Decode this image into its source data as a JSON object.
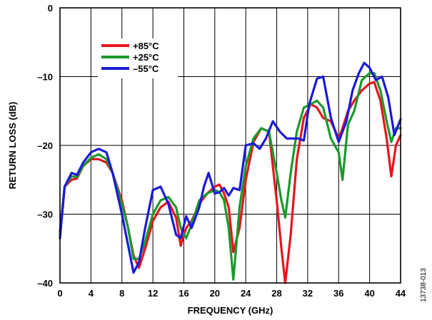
{
  "chart_data": {
    "type": "line",
    "xlabel": "FREQUENCY (GHz)",
    "ylabel": "RETURN LOSS (dB)",
    "xlim": [
      0,
      44
    ],
    "ylim": [
      -40,
      0
    ],
    "x_ticks": [
      0,
      4,
      8,
      12,
      16,
      20,
      24,
      28,
      32,
      36,
      40,
      44
    ],
    "x_tick_labels": [
      "0",
      "4",
      "8",
      "12",
      "16",
      "20",
      "24",
      "28",
      "32",
      "36",
      "40",
      "44"
    ],
    "y_ticks": [
      0,
      -10,
      -20,
      -30,
      -40
    ],
    "y_tick_labels": [
      "0",
      "–10",
      "–20",
      "–30",
      "–40"
    ],
    "grid": true,
    "legend_position": "top-left",
    "series": [
      {
        "name": "+85°C",
        "color": "#e8141e",
        "x": [
          0,
          0.6,
          1.5,
          2.2,
          3,
          4,
          5,
          6,
          6.8,
          8,
          8.8,
          9.5,
          10.2,
          11,
          12,
          13,
          14,
          15,
          15.6,
          16.3,
          17,
          18,
          19,
          20,
          20.6,
          21.2,
          21.8,
          22.4,
          23.2,
          24,
          25,
          26,
          27,
          28,
          28.6,
          29.1,
          29.8,
          30.6,
          31.5,
          32.4,
          33.2,
          34,
          35,
          36,
          36.5,
          37.2,
          38,
          39,
          40,
          40.6,
          41.4,
          42.2,
          42.8,
          43.4,
          44
        ],
        "y": [
          -32.5,
          -26,
          -25,
          -24.8,
          -23,
          -22,
          -22,
          -22.5,
          -24,
          -28,
          -32,
          -36,
          -37.8,
          -35,
          -31,
          -29,
          -28.2,
          -30.5,
          -34.6,
          -32,
          -31,
          -28.5,
          -27,
          -26,
          -25.7,
          -27,
          -29,
          -35.5,
          -32,
          -25,
          -19.5,
          -17.5,
          -18,
          -28,
          -35,
          -40,
          -33,
          -22,
          -16,
          -14,
          -14.5,
          -16,
          -16.5,
          -19,
          -17.5,
          -15,
          -13.5,
          -12,
          -11,
          -10.8,
          -13.5,
          -19,
          -24.5,
          -20,
          -18.5
        ]
      },
      {
        "name": "+25°C",
        "color": "#1a9a2a",
        "x": [
          0,
          0.6,
          1.5,
          2.2,
          3,
          4,
          5,
          6,
          6.8,
          8,
          8.8,
          9.5,
          10.2,
          11,
          12,
          13,
          14,
          15,
          15.6,
          16.3,
          17,
          18,
          19,
          20,
          20.6,
          21.2,
          21.8,
          22.4,
          23.2,
          24,
          25,
          26,
          27,
          28,
          28.6,
          29.1,
          29.8,
          30.6,
          31.5,
          32.4,
          33.2,
          34,
          35,
          36,
          36.5,
          37.2,
          38,
          39,
          40,
          40.6,
          41.4,
          42.2,
          42.8,
          43.4,
          44
        ],
        "y": [
          -33,
          -26,
          -24.5,
          -24.6,
          -23,
          -21.8,
          -21.3,
          -22,
          -24,
          -28.5,
          -32,
          -36.5,
          -36.5,
          -34,
          -30,
          -28,
          -27.5,
          -29,
          -32,
          -33.5,
          -31.5,
          -28,
          -27,
          -26.5,
          -26.8,
          -28,
          -32,
          -39.5,
          -29,
          -23,
          -19,
          -17.5,
          -18,
          -24,
          -28,
          -30.5,
          -24,
          -18,
          -14.5,
          -14,
          -13.5,
          -14.5,
          -19,
          -21,
          -25,
          -17,
          -15,
          -10.5,
          -9.5,
          -9.5,
          -12,
          -16.5,
          -19.5,
          -17.5,
          -17.5
        ]
      },
      {
        "name": "–55°C",
        "color": "#1a1ad8",
        "x": [
          0,
          0.6,
          1.5,
          2.2,
          3,
          4,
          5,
          6,
          6.8,
          8,
          8.8,
          9.5,
          10.2,
          11,
          12,
          13,
          14,
          15,
          15.6,
          16.3,
          17,
          18,
          18.6,
          19.2,
          20,
          20.6,
          21.2,
          21.8,
          22.4,
          23.2,
          24,
          25,
          25.8,
          26.6,
          27.5,
          28.4,
          29.3,
          30,
          30.8,
          31.5,
          32.2,
          33.2,
          34,
          35,
          36,
          37,
          37.8,
          38.6,
          39.3,
          40,
          40.8,
          41.6,
          42.4,
          43.2,
          44
        ],
        "y": [
          -33.5,
          -26,
          -24,
          -24.3,
          -22.5,
          -21,
          -20.5,
          -21,
          -24,
          -30,
          -34.5,
          -38.5,
          -37,
          -32,
          -26.5,
          -26,
          -28.5,
          -33,
          -33.5,
          -30.3,
          -32,
          -29,
          -26,
          -24,
          -27,
          -26.8,
          -26.2,
          -27.3,
          -26.2,
          -26.5,
          -20,
          -19.7,
          -20.5,
          -19,
          -16.5,
          -18,
          -19,
          -19,
          -19,
          -19.3,
          -14,
          -10.3,
          -10,
          -16,
          -19.5,
          -16.5,
          -12,
          -9.5,
          -8,
          -8.7,
          -10.5,
          -10,
          -13,
          -18.5,
          -16.2
        ]
      }
    ]
  },
  "figure_id": "13738-013"
}
